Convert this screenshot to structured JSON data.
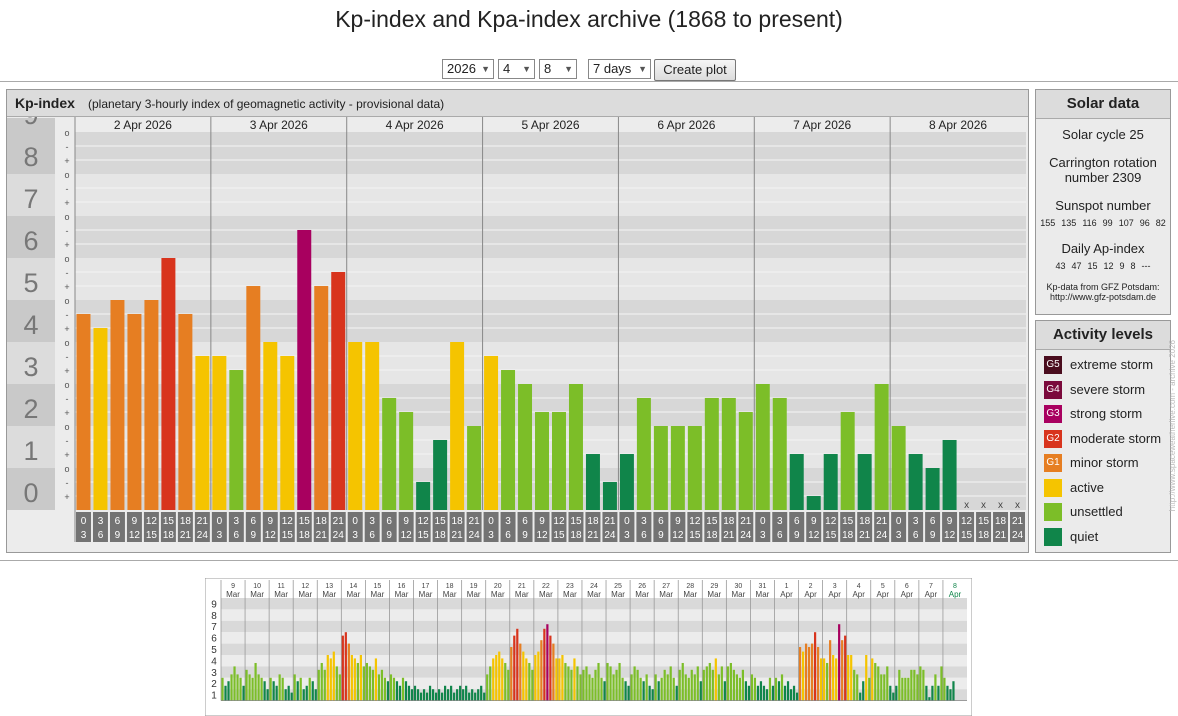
{
  "page_title": "Kp-index and Kpa-index archive (1868 to present)",
  "controls": {
    "year": "2026",
    "month": "4",
    "day": "8",
    "duration": "7 days",
    "create_button": "Create plot"
  },
  "main_panel": {
    "title": "Kp-index",
    "subtitle": "(planetary 3-hourly index of geomagnetic activity - provisional data)"
  },
  "chart_data": [
    {
      "type": "bar",
      "title": "Kp-index",
      "subtitle": "(planetary 3-hourly index of geomagnetic activity - provisional data)",
      "ylim": [
        0,
        9
      ],
      "y_ticks": [
        "0",
        "1",
        "2",
        "3",
        "4",
        "5",
        "6",
        "7",
        "8",
        "9"
      ],
      "minor_ticks": [
        "-",
        "o",
        "+"
      ],
      "days": [
        "2 Apr 2026",
        "3 Apr 2026",
        "4 Apr 2026",
        "5 Apr 2026",
        "6 Apr 2026",
        "7 Apr 2026",
        "8 Apr 2026"
      ],
      "intervals_top": [
        "0",
        "3",
        "6",
        "9",
        "12",
        "15",
        "18",
        "21"
      ],
      "intervals_bottom": [
        "3",
        "6",
        "9",
        "12",
        "15",
        "18",
        "21",
        "24"
      ],
      "missing_label": "x",
      "series": [
        {
          "values": [
            4.667,
            4.333,
            5.0,
            4.667,
            5.0,
            6.0,
            4.667,
            3.667,
            3.667,
            3.333,
            5.333,
            4.0,
            3.667,
            6.667,
            5.333,
            5.667,
            4.0,
            4.0,
            2.667,
            2.333,
            0.667,
            1.667,
            4.0,
            2.0,
            3.667,
            3.333,
            3.0,
            2.333,
            2.333,
            3.0,
            1.333,
            0.667,
            1.333,
            2.667,
            2.0,
            2.0,
            2.0,
            2.667,
            2.667,
            2.333,
            3.0,
            2.667,
            1.333,
            0.333,
            1.333,
            2.333,
            1.333,
            3.0,
            2.0,
            1.333,
            1.0,
            1.667,
            null,
            null,
            null,
            null
          ]
        }
      ],
      "color_thresholds": {
        "quiet": "0-1.667",
        "unsettled": "2-3.667",
        "active": "3.667-4.333",
        "G1": "4.667-5.333",
        "G2": "5.667-6.333",
        "G3": "6.667-7.333",
        "G4": "7.667-8.667",
        "G5": "9"
      }
    },
    {
      "type": "bar",
      "title": "",
      "ylim": [
        0,
        9
      ],
      "y_ticks": [
        "1",
        "2",
        "3",
        "4",
        "5",
        "6",
        "7",
        "8",
        "9"
      ],
      "days": [
        {
          "day": "9",
          "month": "Mar"
        },
        {
          "day": "10",
          "month": "Mar"
        },
        {
          "day": "11",
          "month": "Mar"
        },
        {
          "day": "12",
          "month": "Mar"
        },
        {
          "day": "13",
          "month": "Mar"
        },
        {
          "day": "14",
          "month": "Mar"
        },
        {
          "day": "15",
          "month": "Mar"
        },
        {
          "day": "16",
          "month": "Mar"
        },
        {
          "day": "17",
          "month": "Mar"
        },
        {
          "day": "18",
          "month": "Mar"
        },
        {
          "day": "19",
          "month": "Mar"
        },
        {
          "day": "20",
          "month": "Mar"
        },
        {
          "day": "21",
          "month": "Mar"
        },
        {
          "day": "22",
          "month": "Mar"
        },
        {
          "day": "23",
          "month": "Mar"
        },
        {
          "day": "24",
          "month": "Mar"
        },
        {
          "day": "25",
          "month": "Mar"
        },
        {
          "day": "26",
          "month": "Mar"
        },
        {
          "day": "27",
          "month": "Mar"
        },
        {
          "day": "28",
          "month": "Mar"
        },
        {
          "day": "29",
          "month": "Mar"
        },
        {
          "day": "30",
          "month": "Mar"
        },
        {
          "day": "31",
          "month": "Mar"
        },
        {
          "day": "1",
          "month": "Apr"
        },
        {
          "day": "2",
          "month": "Apr"
        },
        {
          "day": "3",
          "month": "Apr"
        },
        {
          "day": "4",
          "month": "Apr"
        },
        {
          "day": "5",
          "month": "Apr"
        },
        {
          "day": "6",
          "month": "Apr"
        },
        {
          "day": "7",
          "month": "Apr"
        },
        {
          "day": "8",
          "month": "Apr"
        }
      ],
      "series": [
        {
          "values": [
            2.0,
            1.3,
            1.7,
            2.3,
            3.0,
            2.3,
            2.0,
            1.3,
            2.7,
            2.3,
            2.0,
            3.3,
            2.3,
            2.0,
            1.7,
            1.0,
            2.0,
            1.7,
            1.3,
            2.3,
            2.0,
            1.0,
            1.3,
            0.7,
            2.3,
            1.7,
            2.0,
            1.0,
            1.3,
            2.0,
            1.7,
            1.0,
            2.7,
            3.3,
            2.7,
            4.0,
            3.7,
            4.3,
            3.0,
            2.3,
            5.7,
            6.0,
            5.0,
            4.0,
            3.7,
            3.3,
            4.0,
            3.0,
            3.3,
            3.0,
            2.7,
            3.7,
            2.3,
            2.7,
            2.0,
            1.7,
            2.3,
            2.0,
            1.7,
            1.3,
            2.0,
            1.7,
            1.3,
            1.0,
            1.3,
            1.0,
            0.7,
            1.0,
            0.7,
            1.3,
            1.0,
            0.7,
            1.0,
            0.7,
            1.3,
            1.0,
            1.3,
            0.7,
            1.0,
            1.3,
            1.0,
            1.3,
            0.7,
            1.0,
            0.7,
            1.0,
            1.3,
            0.7,
            2.3,
            3.0,
            3.7,
            4.0,
            4.3,
            3.7,
            3.3,
            2.7,
            4.7,
            5.7,
            6.3,
            5.0,
            4.3,
            3.7,
            3.3,
            2.7,
            4.0,
            4.3,
            5.3,
            6.3,
            6.7,
            5.7,
            5.0,
            3.7,
            3.7,
            4.0,
            3.3,
            3.0,
            2.7,
            3.7,
            3.0,
            2.3,
            2.7,
            3.0,
            2.3,
            2.0,
            2.7,
            3.3,
            2.0,
            1.7,
            3.3,
            3.0,
            2.3,
            2.7,
            3.3,
            2.0,
            1.7,
            1.3,
            2.3,
            3.0,
            2.7,
            2.0,
            1.7,
            2.3,
            1.3,
            1.0,
            2.3,
            1.7,
            2.0,
            2.7,
            2.3,
            3.0,
            2.0,
            1.3,
            2.7,
            3.3,
            2.3,
            2.0,
            2.7,
            2.3,
            3.0,
            1.7,
            2.7,
            3.0,
            3.3,
            2.7,
            3.7,
            2.3,
            3.0,
            1.7,
            3.0,
            3.3,
            2.7,
            2.3,
            2.0,
            2.7,
            1.7,
            1.3,
            2.3,
            2.0,
            1.3,
            1.7,
            1.3,
            1.0,
            2.0,
            1.3,
            2.0,
            1.7,
            2.3,
            1.3,
            1.7,
            1.0,
            1.3,
            0.7,
            4.7,
            4.3,
            5.0,
            4.7,
            5.0,
            6.0,
            4.7,
            3.7,
            3.7,
            3.3,
            5.3,
            4.0,
            3.7,
            6.7,
            5.3,
            5.7,
            4.0,
            4.0,
            2.7,
            2.3,
            0.7,
            1.7,
            4.0,
            2.0,
            3.7,
            3.3,
            3.0,
            2.3,
            2.3,
            3.0,
            1.3,
            0.7,
            1.3,
            2.7,
            2.0,
            2.0,
            2.0,
            2.7,
            2.7,
            2.3,
            3.0,
            2.7,
            1.3,
            0.3,
            1.3,
            2.3,
            1.3,
            3.0,
            2.0,
            1.3,
            1.0,
            1.7
          ]
        }
      ]
    }
  ],
  "solar": {
    "header": "Solar data",
    "cycle": "Solar cycle 25",
    "carrington_line1": "Carrington rotation",
    "carrington_line2": "number 2309",
    "sunspot_label": "Sunspot number",
    "sunspot_values": [
      "155",
      "135",
      "116",
      "99",
      "107",
      "96",
      "82"
    ],
    "ap_label": "Daily Ap-index",
    "ap_values": [
      "43",
      "47",
      "15",
      "12",
      "9",
      "8",
      "---"
    ],
    "source1": "Kp-data from GFZ Potsdam:",
    "source2": "http://www.gfz-potsdam.de"
  },
  "activity": {
    "header": "Activity levels",
    "levels": [
      {
        "badge": "G5",
        "label": "extreme storm",
        "color": "#4a0d1e"
      },
      {
        "badge": "G4",
        "label": "severe storm",
        "color": "#7b0a3c"
      },
      {
        "badge": "G3",
        "label": "strong storm",
        "color": "#a8005f"
      },
      {
        "badge": "G2",
        "label": "moderate storm",
        "color": "#d8341d"
      },
      {
        "badge": "G1",
        "label": "minor storm",
        "color": "#e67e22"
      },
      {
        "badge": "",
        "label": "active",
        "color": "#f5c400"
      },
      {
        "badge": "",
        "label": "unsettled",
        "color": "#7cbe28"
      },
      {
        "badge": "",
        "label": "quiet",
        "color": "#10854a"
      }
    ]
  },
  "side_caption": "http://www.spaceweatherlive.com - archive 2026"
}
